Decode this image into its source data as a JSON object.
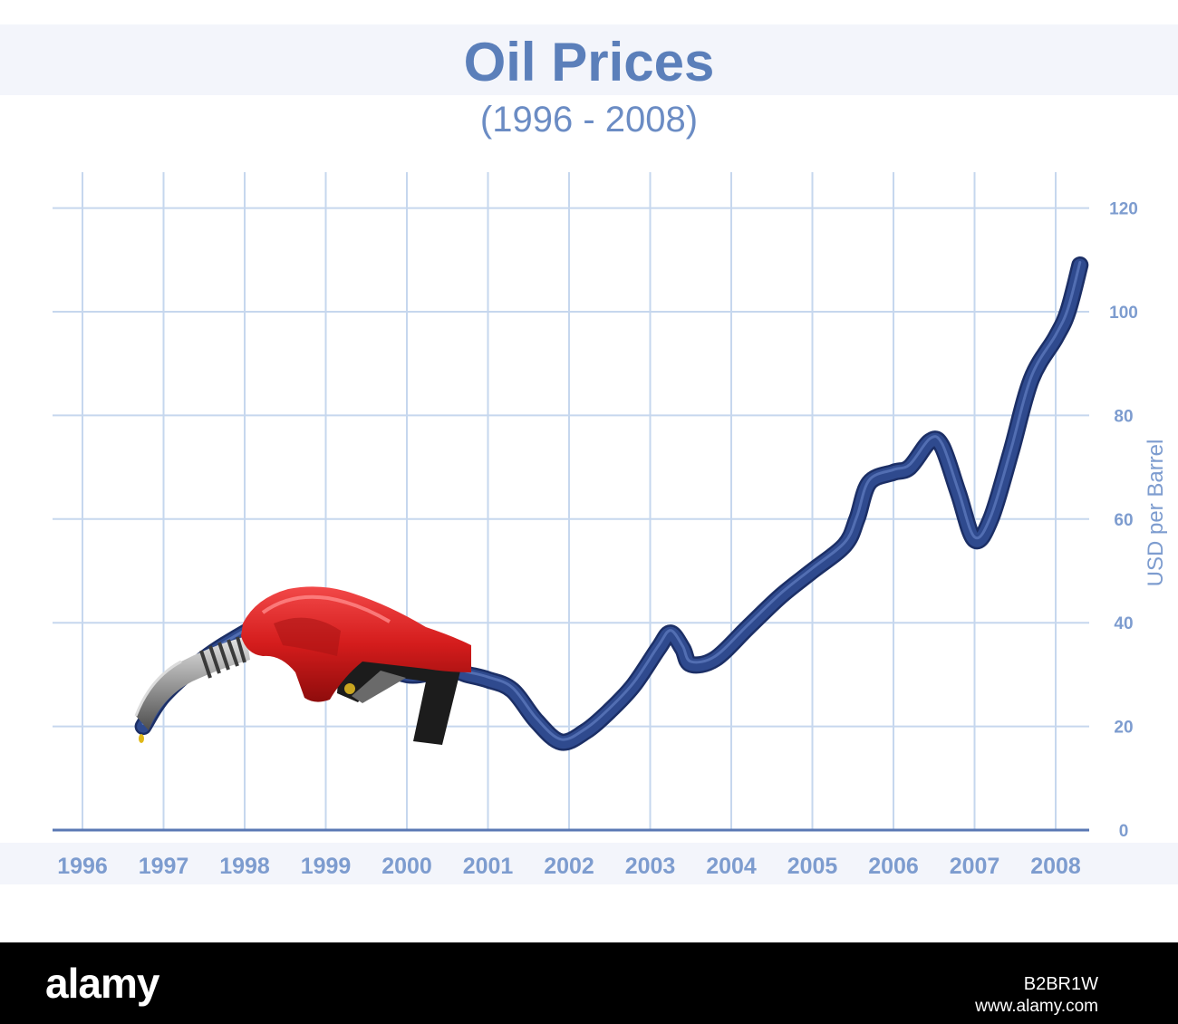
{
  "chart_data": {
    "type": "line",
    "title": "Oil Prices",
    "subtitle": "(1996 - 2008)",
    "xlabel": "",
    "ylabel": "USD per Barrel",
    "x_ticks": [
      "1996",
      "1997",
      "1998",
      "1999",
      "2000",
      "2001",
      "2002",
      "2003",
      "2004",
      "2005",
      "2006",
      "2007",
      "2008"
    ],
    "y_ticks": [
      "0",
      "20",
      "40",
      "60",
      "80",
      "100",
      "120"
    ],
    "xlim": [
      1996,
      2008.4
    ],
    "ylim": [
      0,
      120
    ],
    "grid": true,
    "y_axis_side": "right",
    "series": [
      {
        "x": [
          1996.75,
          1997.0,
          1997.5,
          1998.0,
          1998.5,
          1999.0,
          1999.5,
          2000.0,
          2000.5,
          2000.75,
          2001.0,
          2001.3,
          2001.6,
          2001.9,
          2002.2,
          2002.5,
          2002.8,
          2003.1,
          2003.25,
          2003.4,
          2003.5,
          2003.8,
          2004.2,
          2004.6,
          2005.0,
          2005.4,
          2005.55,
          2005.7,
          2006.0,
          2006.2,
          2006.45,
          2006.6,
          2006.8,
          2007.0,
          2007.2,
          2007.45,
          2007.7,
          2008.0,
          2008.15,
          2008.3
        ],
        "y": [
          20,
          26,
          33,
          38,
          42,
          40,
          34,
          30,
          31,
          30,
          29,
          27,
          21,
          17,
          19,
          23,
          28,
          35,
          38,
          35,
          32,
          33,
          39,
          45,
          50,
          55,
          60,
          67,
          69,
          70,
          75,
          74,
          65,
          56,
          60,
          73,
          87,
          95,
          100,
          109
        ]
      }
    ],
    "colors": {
      "line": "#2f4a8e",
      "grid": "#c6d7ee",
      "ticks": "#7d9ccf",
      "title": "#5b7fba"
    }
  },
  "footer": {
    "brand": "alamy",
    "image_id": "B2BR1W",
    "url": "www.alamy.com"
  }
}
